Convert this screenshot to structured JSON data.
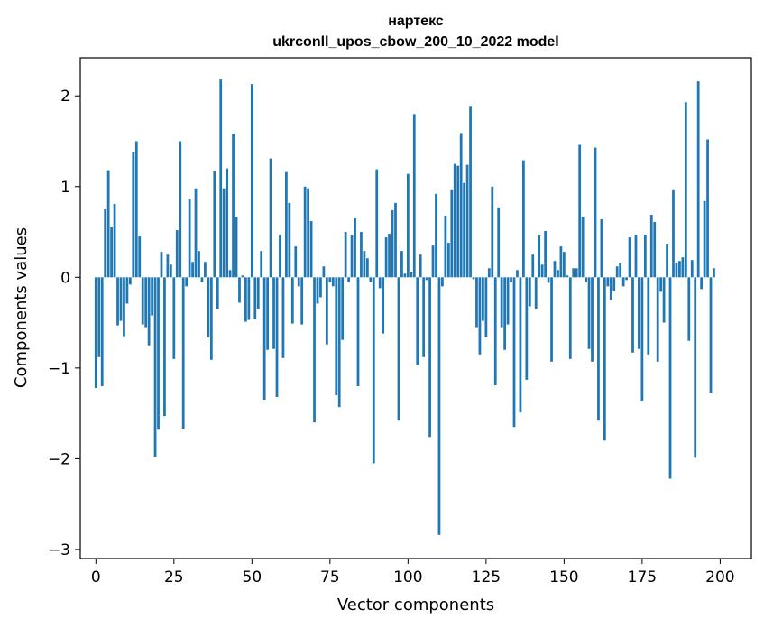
{
  "chart_data": {
    "type": "bar",
    "title": "нартекс",
    "subtitle": "ukrconll_upos_cbow_200_10_2022 model",
    "xlabel": "Vector components",
    "ylabel": "Components values",
    "xlim": [
      -5,
      210
    ],
    "ylim": [
      -3.1,
      2.42
    ],
    "xticks": [
      0,
      25,
      50,
      75,
      100,
      125,
      150,
      175,
      200
    ],
    "yticks": [
      -3,
      -2,
      -1,
      0,
      1,
      2
    ],
    "ytick_labels": [
      "−3",
      "−2",
      "−1",
      "0",
      "1",
      "2"
    ],
    "grid": false,
    "bar_color": "#1f77b4",
    "series": [
      {
        "values": [
          -1.22,
          -0.88,
          -1.2,
          0.75,
          1.18,
          0.55,
          0.81,
          -0.53,
          -0.48,
          -0.65,
          -0.29,
          -0.08,
          1.38,
          1.5,
          0.45,
          -0.52,
          -0.55,
          -0.75,
          -0.42,
          -1.98,
          -1.68,
          0.28,
          -1.53,
          0.25,
          0.14,
          -0.9,
          0.52,
          1.5,
          -1.67,
          -0.1,
          0.86,
          0.17,
          0.98,
          0.29,
          -0.05,
          0.17,
          -0.66,
          -0.91,
          1.17,
          -0.35,
          2.18,
          0.98,
          1.2,
          0.08,
          1.58,
          0.67,
          -0.28,
          0.02,
          -0.49,
          -0.47,
          2.13,
          -0.46,
          -0.35,
          0.29,
          -1.35,
          -0.8,
          1.31,
          -0.79,
          -1.32,
          0.47,
          -0.89,
          1.16,
          0.82,
          -0.51,
          0.34,
          -0.1,
          -0.52,
          1.0,
          0.98,
          0.62,
          -1.6,
          -0.29,
          -0.22,
          0.12,
          -0.74,
          -0.05,
          -0.1,
          -1.3,
          -1.43,
          -0.69,
          0.5,
          -0.05,
          0.47,
          0.65,
          -1.2,
          0.5,
          0.29,
          0.21,
          -0.05,
          -2.05,
          1.19,
          -0.12,
          -0.62,
          0.44,
          0.48,
          0.74,
          0.82,
          -1.58,
          0.29,
          0.04,
          1.14,
          0.06,
          1.8,
          -0.97,
          0.25,
          -0.88,
          -0.03,
          -1.76,
          0.35,
          0.92,
          -2.84,
          -0.1,
          0.68,
          0.38,
          0.96,
          1.25,
          1.23,
          1.59,
          1.04,
          1.24,
          1.88,
          -0.02,
          -0.55,
          -0.85,
          -0.48,
          -0.66,
          0.1,
          1.0,
          -1.19,
          0.77,
          -0.55,
          -0.8,
          -0.52,
          -0.05,
          -1.65,
          0.08,
          -1.49,
          1.29,
          -1.13,
          -0.32,
          0.25,
          -0.35,
          0.46,
          0.14,
          0.51,
          -0.06,
          -0.93,
          0.18,
          0.08,
          0.34,
          0.28,
          0.02,
          -0.9,
          0.1,
          0.1,
          1.46,
          0.67,
          -0.05,
          -0.79,
          -0.93,
          1.43,
          -1.58,
          0.64,
          -1.8,
          -0.1,
          -0.25,
          -0.15,
          0.12,
          0.16,
          -0.1,
          -0.03,
          0.44,
          -0.83,
          0.47,
          -0.79,
          -1.36,
          0.47,
          -0.85,
          0.69,
          0.61,
          -0.93,
          -0.16,
          -0.5,
          0.37,
          -2.22,
          0.96,
          0.16,
          0.18,
          0.22,
          1.93,
          -0.7,
          0.19,
          -1.99,
          2.16,
          -0.13,
          0.84,
          1.52,
          -1.28,
          0.1
        ]
      }
    ]
  }
}
